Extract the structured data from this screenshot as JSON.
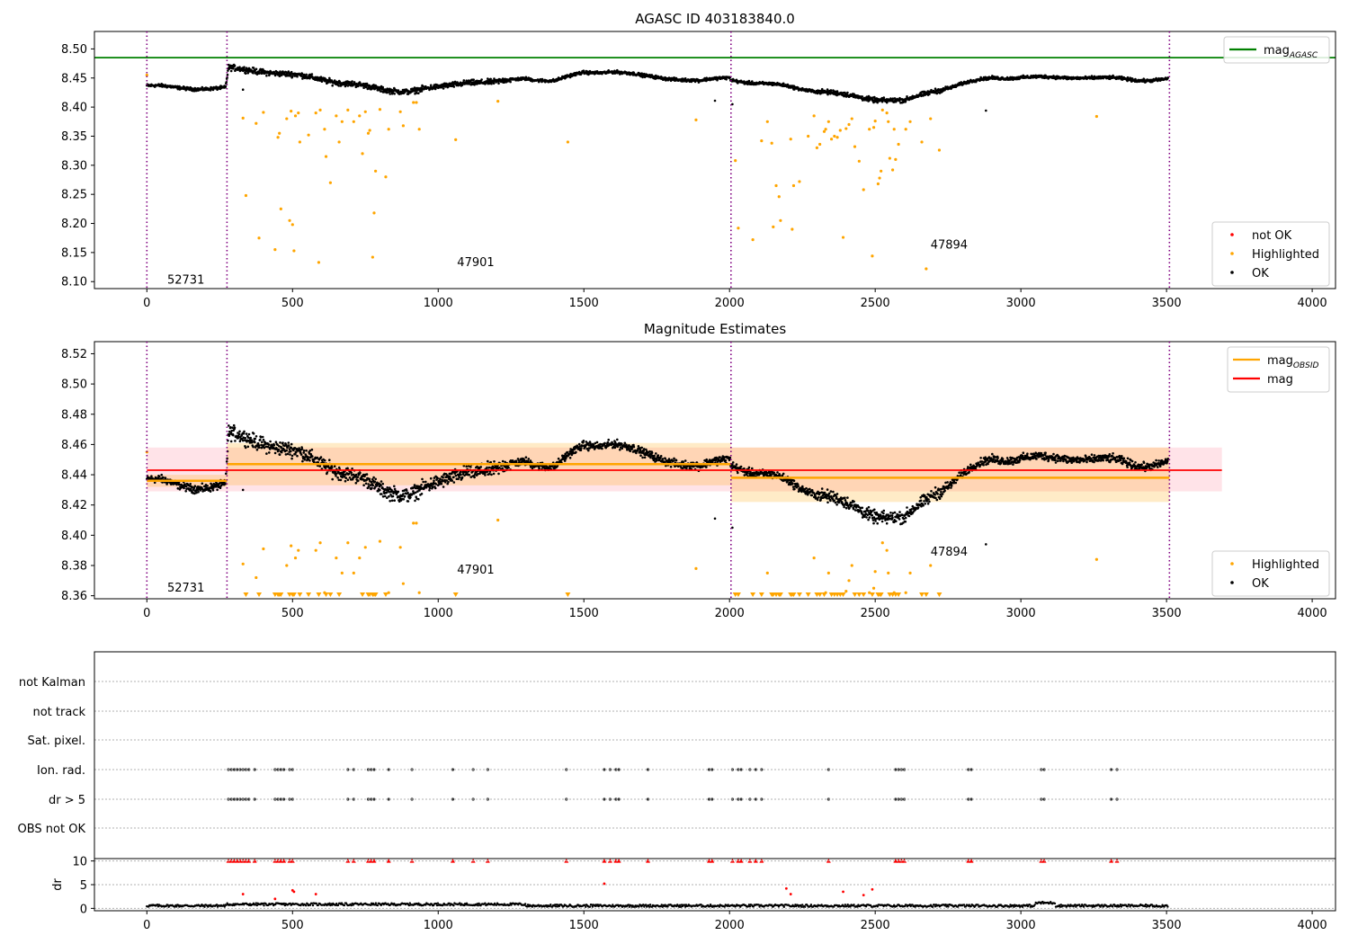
{
  "figure": {
    "background": "#ffffff"
  },
  "chart_data": [
    {
      "type": "scatter",
      "title": "AGASC ID 403183840.0",
      "xlabel": "",
      "ylabel": "",
      "xlim": [
        -180,
        4080
      ],
      "ylim": [
        8.088,
        8.53
      ],
      "xticks": [
        0,
        500,
        1000,
        1500,
        2000,
        2500,
        3000,
        3500,
        4000
      ],
      "yticks": [
        8.1,
        8.15,
        8.2,
        8.25,
        8.3,
        8.35,
        8.4,
        8.45,
        8.5
      ],
      "ytick_labels": [
        "8.10",
        "8.15",
        "8.20",
        "8.25",
        "8.30",
        "8.35",
        "8.40",
        "8.45",
        "8.50"
      ],
      "obs_boundaries": [
        0,
        275,
        2005,
        3510
      ],
      "obsid_labels": [
        {
          "text": "52731",
          "x": 70,
          "y": 8.103
        },
        {
          "text": "47901",
          "x": 1065,
          "y": 8.133
        },
        {
          "text": "47894",
          "x": 2690,
          "y": 8.163
        }
      ],
      "reference_line": {
        "name": "mag_AGASC",
        "y": 8.485,
        "color": "#008000"
      },
      "legends": [
        {
          "position": "upper right",
          "entries": [
            {
              "label": "mag",
              "sub": "AGASC",
              "kind": "line",
              "color": "#008000"
            }
          ]
        },
        {
          "position": "lower right",
          "entries": [
            {
              "label": "not OK",
              "kind": "dot",
              "color": "#ff0000"
            },
            {
              "label": "Highlighted",
              "kind": "dot",
              "color": "#ffa500"
            },
            {
              "label": "OK",
              "kind": "dot",
              "color": "#000000"
            }
          ]
        }
      ],
      "series": [
        {
          "name": "OK",
          "color": "#000000",
          "points": "generated from baseline trend below"
        },
        {
          "name": "Highlighted",
          "color": "#ffa500",
          "points": [
            [
              0,
              8.455
            ],
            [
              330,
              8.381
            ],
            [
              340,
              8.248
            ],
            [
              375,
              8.372
            ],
            [
              385,
              8.175
            ],
            [
              400,
              8.391
            ],
            [
              440,
              8.155
            ],
            [
              450,
              8.348
            ],
            [
              455,
              8.355
            ],
            [
              460,
              8.225
            ],
            [
              480,
              8.38
            ],
            [
              490,
              8.205
            ],
            [
              495,
              8.393
            ],
            [
              500,
              8.198
            ],
            [
              505,
              8.153
            ],
            [
              510,
              8.385
            ],
            [
              520,
              8.39
            ],
            [
              525,
              8.34
            ],
            [
              555,
              8.352
            ],
            [
              580,
              8.39
            ],
            [
              590,
              8.133
            ],
            [
              595,
              8.395
            ],
            [
              610,
              8.362
            ],
            [
              615,
              8.315
            ],
            [
              630,
              8.27
            ],
            [
              650,
              8.385
            ],
            [
              660,
              8.34
            ],
            [
              670,
              8.375
            ],
            [
              690,
              8.395
            ],
            [
              710,
              8.375
            ],
            [
              730,
              8.385
            ],
            [
              740,
              8.32
            ],
            [
              750,
              8.392
            ],
            [
              760,
              8.355
            ],
            [
              765,
              8.36
            ],
            [
              775,
              8.142
            ],
            [
              780,
              8.218
            ],
            [
              785,
              8.29
            ],
            [
              800,
              8.396
            ],
            [
              820,
              8.28
            ],
            [
              830,
              8.362
            ],
            [
              870,
              8.392
            ],
            [
              880,
              8.368
            ],
            [
              915,
              8.408
            ],
            [
              925,
              8.408
            ],
            [
              935,
              8.362
            ],
            [
              1060,
              8.344
            ],
            [
              1205,
              8.41
            ],
            [
              1445,
              8.34
            ],
            [
              1885,
              8.378
            ],
            [
              2020,
              8.308
            ],
            [
              2030,
              8.192
            ],
            [
              2080,
              8.172
            ],
            [
              2110,
              8.342
            ],
            [
              2130,
              8.375
            ],
            [
              2145,
              8.338
            ],
            [
              2150,
              8.194
            ],
            [
              2160,
              8.265
            ],
            [
              2170,
              8.246
            ],
            [
              2175,
              8.205
            ],
            [
              2210,
              8.345
            ],
            [
              2215,
              8.19
            ],
            [
              2220,
              8.265
            ],
            [
              2240,
              8.272
            ],
            [
              2270,
              8.35
            ],
            [
              2290,
              8.385
            ],
            [
              2300,
              8.33
            ],
            [
              2310,
              8.336
            ],
            [
              2325,
              8.358
            ],
            [
              2330,
              8.362
            ],
            [
              2340,
              8.375
            ],
            [
              2350,
              8.345
            ],
            [
              2360,
              8.35
            ],
            [
              2370,
              8.348
            ],
            [
              2380,
              8.36
            ],
            [
              2390,
              8.176
            ],
            [
              2400,
              8.363
            ],
            [
              2410,
              8.37
            ],
            [
              2420,
              8.38
            ],
            [
              2430,
              8.332
            ],
            [
              2445,
              8.307
            ],
            [
              2460,
              8.258
            ],
            [
              2480,
              8.362
            ],
            [
              2490,
              8.144
            ],
            [
              2495,
              8.365
            ],
            [
              2500,
              8.376
            ],
            [
              2510,
              8.268
            ],
            [
              2515,
              8.278
            ],
            [
              2520,
              8.29
            ],
            [
              2525,
              8.395
            ],
            [
              2540,
              8.39
            ],
            [
              2545,
              8.375
            ],
            [
              2550,
              8.312
            ],
            [
              2560,
              8.292
            ],
            [
              2565,
              8.362
            ],
            [
              2570,
              8.31
            ],
            [
              2580,
              8.336
            ],
            [
              2605,
              8.362
            ],
            [
              2620,
              8.375
            ],
            [
              2660,
              8.34
            ],
            [
              2675,
              8.122
            ],
            [
              2690,
              8.38
            ],
            [
              2720,
              8.326
            ],
            [
              3260,
              8.384
            ]
          ]
        },
        {
          "name": "not OK",
          "color": "#ff0000",
          "points": []
        }
      ]
    },
    {
      "type": "scatter",
      "title": "Magnitude Estimates",
      "xlabel": "",
      "ylabel": "",
      "xlim": [
        -180,
        4080
      ],
      "ylim": [
        8.358,
        8.528
      ],
      "xticks": [
        0,
        500,
        1000,
        1500,
        2000,
        2500,
        3000,
        3500,
        4000
      ],
      "yticks": [
        8.36,
        8.38,
        8.4,
        8.42,
        8.44,
        8.46,
        8.48,
        8.5,
        8.52
      ],
      "ytick_labels": [
        "8.36",
        "8.38",
        "8.40",
        "8.42",
        "8.44",
        "8.46",
        "8.48",
        "8.50",
        "8.52"
      ],
      "obs_boundaries": [
        0,
        275,
        2005,
        3510
      ],
      "obsid_labels": [
        {
          "text": "52731",
          "x": 70,
          "y": 8.365
        },
        {
          "text": "47901",
          "x": 1065,
          "y": 8.377
        },
        {
          "text": "47894",
          "x": 2690,
          "y": 8.389
        }
      ],
      "mag": {
        "name": "mag",
        "y": 8.443,
        "band": [
          8.429,
          8.458
        ],
        "x": [
          0,
          3690
        ],
        "color": "#ff0000",
        "band_color": "#ffc0cb"
      },
      "mag_obsid": [
        {
          "x": [
            0,
            275
          ],
          "y": 8.436,
          "band": [
            8.432,
            8.44
          ]
        },
        {
          "x": [
            275,
            2005
          ],
          "y": 8.447,
          "band": [
            8.433,
            8.461
          ]
        },
        {
          "x": [
            2005,
            3510
          ],
          "y": 8.438,
          "band": [
            8.422,
            8.458
          ]
        }
      ],
      "legends": [
        {
          "position": "upper right",
          "entries": [
            {
              "label": "mag",
              "sub": "OBSID",
              "kind": "line",
              "color": "#ffa500"
            },
            {
              "label": "mag",
              "kind": "line",
              "color": "#ff0000"
            }
          ]
        },
        {
          "position": "lower right",
          "entries": [
            {
              "label": "Highlighted",
              "kind": "dot",
              "color": "#ffa500"
            },
            {
              "label": "OK",
              "kind": "dot",
              "color": "#000000"
            }
          ]
        }
      ],
      "series": [
        {
          "name": "OK",
          "color": "#000000",
          "points": "generated from baseline trend below"
        },
        {
          "name": "Highlighted",
          "color": "#ffa500",
          "points": "same highlighted samples as panel 1; values below 8.36 shown as triangles at the axis floor"
        }
      ]
    },
    {
      "type": "scatter",
      "title": "",
      "xlabel": "",
      "ylabel": "dr",
      "xlim": [
        -180,
        4080
      ],
      "xticks": [
        0,
        500,
        1000,
        1500,
        2000,
        2500,
        3000,
        3500,
        4000
      ],
      "flag_rows": [
        "not Kalman",
        "not track",
        "Sat. pixel.",
        "Ion. rad.",
        "dr > 5",
        "OBS not OK"
      ],
      "flag_points": {
        "Ion. rad.": [
          280,
          290,
          300,
          310,
          320,
          330,
          340,
          350,
          370,
          440,
          450,
          460,
          470,
          490,
          500,
          690,
          710,
          760,
          770,
          780,
          830,
          910,
          1050,
          1120,
          1170,
          1440,
          1570,
          1590,
          1610,
          1620,
          1720,
          1930,
          1940,
          2010,
          2030,
          2040,
          2070,
          2090,
          2110,
          2340,
          2570,
          2580,
          2590,
          2600,
          2820,
          2830,
          3070,
          3080,
          3310,
          3330
        ],
        "dr > 5": [
          280,
          290,
          300,
          310,
          320,
          330,
          340,
          350,
          370,
          440,
          450,
          460,
          470,
          490,
          500,
          690,
          710,
          760,
          770,
          780,
          830,
          910,
          1050,
          1120,
          1170,
          1440,
          1570,
          1590,
          1610,
          1620,
          1720,
          1930,
          1940,
          2010,
          2030,
          2040,
          2070,
          2090,
          2110,
          2340,
          2570,
          2580,
          2590,
          2600,
          2820,
          2830,
          3070,
          3080,
          3310,
          3330
        ]
      },
      "dr_ylim": [
        -0.5,
        10.5
      ],
      "dr_yticks": [
        0,
        5,
        10
      ],
      "dr_outliers_red": [
        [
          330,
          3.0
        ],
        [
          440,
          2.0
        ],
        [
          500,
          3.8
        ],
        [
          505,
          3.5
        ],
        [
          580,
          3.0
        ],
        [
          1570,
          5.2
        ],
        [
          2195,
          4.2
        ],
        [
          2210,
          3.0
        ],
        [
          2390,
          3.5
        ],
        [
          2460,
          2.8
        ],
        [
          2490,
          4.0
        ]
      ]
    }
  ]
}
